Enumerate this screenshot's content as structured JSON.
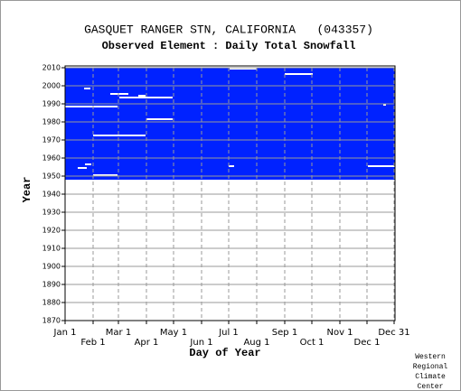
{
  "chart_data": {
    "type": "availability",
    "title": "GASQUET RANGER STN, CALIFORNIA   (043357)",
    "subtitle": "Observed Element : Daily Total Snowfall",
    "x_label": "Day of Year",
    "y_label": "Year",
    "color": "#0022ff",
    "gap_color": "#ffffff",
    "xlim": [
      0,
      365
    ],
    "ylim": [
      1870,
      2010
    ],
    "xticks": [
      {
        "value": 0,
        "label": "Jan 1"
      },
      {
        "value": 31,
        "label": "Feb 1"
      },
      {
        "value": 59,
        "label": "Mar 1"
      },
      {
        "value": 90,
        "label": "Apr 1"
      },
      {
        "value": 120,
        "label": "May 1"
      },
      {
        "value": 151,
        "label": "Jun 1"
      },
      {
        "value": 181,
        "label": "Jul 1"
      },
      {
        "value": 212,
        "label": "Aug 1"
      },
      {
        "value": 243,
        "label": "Sep 1"
      },
      {
        "value": 273,
        "label": "Oct 1"
      },
      {
        "value": 304,
        "label": "Nov 1"
      },
      {
        "value": 334,
        "label": "Dec 1"
      },
      {
        "value": 364,
        "label": "Dec 31"
      }
    ],
    "yticks": [
      1870,
      1880,
      1890,
      1900,
      1910,
      1920,
      1930,
      1940,
      1950,
      1960,
      1970,
      1980,
      1990,
      2000,
      2010
    ],
    "grid": true,
    "blocks": [
      {
        "days": [
          0,
          365
        ],
        "years": [
          1948,
          2010
        ]
      }
    ],
    "gaps": [
      {
        "year": 1988,
        "days": [
          0,
          58
        ]
      },
      {
        "year": 1972,
        "days": [
          31,
          89
        ]
      },
      {
        "year": 1981,
        "days": [
          90,
          119
        ]
      },
      {
        "year": 1993,
        "days": [
          60,
          119
        ]
      },
      {
        "year": 1994,
        "days": [
          81,
          89
        ]
      },
      {
        "year": 1995,
        "days": [
          50,
          70
        ]
      },
      {
        "year": 1998,
        "days": [
          21,
          28
        ]
      },
      {
        "year": 2006,
        "days": [
          243,
          274
        ]
      },
      {
        "year": 2009,
        "days": [
          182,
          212
        ]
      },
      {
        "year": 1955,
        "days": [
          335,
          365
        ]
      },
      {
        "year": 1955,
        "days": [
          181,
          187
        ]
      },
      {
        "year": 1989,
        "days": [
          352,
          355
        ]
      },
      {
        "year": 1950,
        "days": [
          31,
          58
        ]
      },
      {
        "year": 1954,
        "days": [
          14,
          24
        ]
      },
      {
        "year": 1956,
        "days": [
          22,
          29
        ]
      }
    ],
    "credit": [
      "Western",
      "Regional",
      "Climate",
      "Center"
    ]
  }
}
